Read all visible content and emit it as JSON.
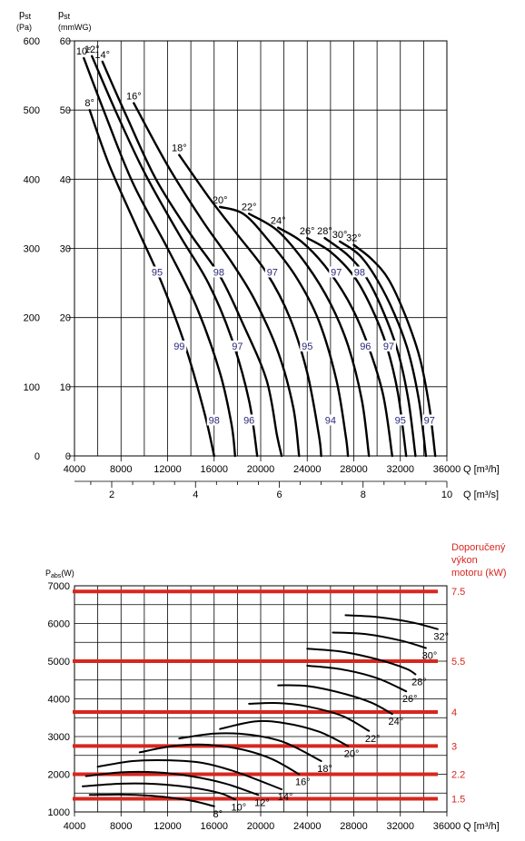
{
  "chart_data": [
    {
      "type": "line",
      "title": "",
      "xlabel": "Q [m³/h]",
      "x2label": "Q [m³/s]",
      "ylabel": "pst (Pa)",
      "y2label": "pst (mmWG)",
      "xlim": [
        4000,
        36000
      ],
      "ylim": [
        0,
        600
      ],
      "x_ticks": [
        4000,
        8000,
        12000,
        16000,
        20000,
        24000,
        28000,
        32000,
        36000
      ],
      "x2_ticks": [
        2,
        4,
        6,
        8,
        10
      ],
      "y_ticks": [
        0,
        100,
        200,
        300,
        400,
        500,
        600
      ],
      "y2_ticks": [
        0,
        10,
        20,
        30,
        40,
        50,
        60
      ],
      "grid": true,
      "series": [
        {
          "name": "8°",
          "points": [
            [
              5300,
              500
            ],
            [
              7000,
              420
            ],
            [
              9500,
              325
            ],
            [
              11500,
              250
            ],
            [
              13500,
              160
            ],
            [
              15200,
              60
            ],
            [
              16000,
              0
            ]
          ]
        },
        {
          "name": "10°",
          "points": [
            [
              4800,
              575
            ],
            [
              6500,
              500
            ],
            [
              9000,
              395
            ],
            [
              12000,
              300
            ],
            [
              14500,
              215
            ],
            [
              16500,
              120
            ],
            [
              17500,
              45
            ],
            [
              17800,
              0
            ]
          ]
        },
        {
          "name": "12°",
          "points": [
            [
              5500,
              578
            ],
            [
              7500,
              500
            ],
            [
              10000,
              410
            ],
            [
              13000,
              320
            ],
            [
              15500,
              250
            ],
            [
              17500,
              170
            ],
            [
              19000,
              80
            ],
            [
              19700,
              0
            ]
          ]
        },
        {
          "name": "14°",
          "points": [
            [
              6400,
              570
            ],
            [
              8500,
              490
            ],
            [
              11000,
              400
            ],
            [
              14000,
              320
            ],
            [
              16500,
              260
            ],
            [
              18500,
              190
            ],
            [
              20500,
              110
            ],
            [
              21400,
              30
            ],
            [
              21800,
              0
            ]
          ]
        },
        {
          "name": "16°",
          "points": [
            [
              9100,
              510
            ],
            [
              12000,
              420
            ],
            [
              15000,
              340
            ],
            [
              17500,
              280
            ],
            [
              19500,
              225
            ],
            [
              21500,
              150
            ],
            [
              22800,
              70
            ],
            [
              23300,
              0
            ]
          ]
        },
        {
          "name": "18°",
          "points": [
            [
              13000,
              435
            ],
            [
              15500,
              375
            ],
            [
              18000,
              320
            ],
            [
              20500,
              265
            ],
            [
              22500,
              200
            ],
            [
              24000,
              120
            ],
            [
              25000,
              30
            ],
            [
              25200,
              0
            ]
          ]
        },
        {
          "name": "20°",
          "points": [
            [
              16500,
              360
            ],
            [
              18500,
              350
            ],
            [
              20500,
              315
            ],
            [
              23000,
              260
            ],
            [
              25000,
              195
            ],
            [
              26500,
              110
            ],
            [
              27300,
              30
            ],
            [
              27500,
              0
            ]
          ]
        },
        {
          "name": "22°",
          "points": [
            [
              19000,
              350
            ],
            [
              21500,
              325
            ],
            [
              24000,
              275
            ],
            [
              26000,
              220
            ],
            [
              27500,
              160
            ],
            [
              28700,
              80
            ],
            [
              29300,
              0
            ]
          ]
        },
        {
          "name": "24°",
          "points": [
            [
              21500,
              330
            ],
            [
              23500,
              310
            ],
            [
              25500,
              275
            ],
            [
              27500,
              225
            ],
            [
              29000,
              170
            ],
            [
              30500,
              90
            ],
            [
              31300,
              0
            ]
          ]
        },
        {
          "name": "26°",
          "points": [
            [
              24000,
              315
            ],
            [
              26000,
              295
            ],
            [
              28000,
              260
            ],
            [
              29500,
              215
            ],
            [
              30800,
              160
            ],
            [
              31800,
              90
            ],
            [
              32500,
              0
            ]
          ]
        },
        {
          "name": "28°",
          "points": [
            [
              25500,
              315
            ],
            [
              27500,
              290
            ],
            [
              29000,
              260
            ],
            [
              30500,
              210
            ],
            [
              31800,
              150
            ],
            [
              32700,
              80
            ],
            [
              33300,
              0
            ]
          ]
        },
        {
          "name": "30°",
          "points": [
            [
              26800,
              310
            ],
            [
              28500,
              290
            ],
            [
              30000,
              255
            ],
            [
              31500,
              205
            ],
            [
              32700,
              150
            ],
            [
              33600,
              80
            ],
            [
              34200,
              0
            ]
          ]
        },
        {
          "name": "32°",
          "points": [
            [
              28000,
              305
            ],
            [
              29500,
              285
            ],
            [
              31000,
              255
            ],
            [
              32500,
              200
            ],
            [
              33700,
              140
            ],
            [
              34500,
              70
            ],
            [
              35000,
              0
            ]
          ]
        }
      ],
      "efficiency_labels": [
        "95",
        "99",
        "98",
        "98",
        "97",
        "96",
        "97",
        "95",
        "94",
        "97",
        "96",
        "95",
        "98",
        "97",
        "97"
      ]
    },
    {
      "type": "line",
      "title": "",
      "xlabel": "Q [m³/h]",
      "ylabel": "Pabs (W)",
      "right_label": "Doporučený výkon motoru (kW)",
      "xlim": [
        4000,
        36000
      ],
      "ylim": [
        1000,
        7000
      ],
      "x_ticks": [
        4000,
        8000,
        12000,
        16000,
        20000,
        24000,
        28000,
        32000,
        36000
      ],
      "y_ticks": [
        1000,
        2000,
        3000,
        4000,
        5000,
        6000,
        7000
      ],
      "grid": true,
      "motor_levels": [
        {
          "label": "7.5",
          "power": 6850
        },
        {
          "label": "5.5",
          "power": 5000
        },
        {
          "label": "4",
          "power": 3650
        },
        {
          "label": "3",
          "power": 2750
        },
        {
          "label": "2.2",
          "power": 2000
        },
        {
          "label": "1.5",
          "power": 1350
        }
      ],
      "series": [
        {
          "name": "8°",
          "points": [
            [
              5300,
              1450
            ],
            [
              8000,
              1460
            ],
            [
              11000,
              1420
            ],
            [
              14000,
              1300
            ],
            [
              16000,
              1150
            ]
          ]
        },
        {
          "name": "10°",
          "points": [
            [
              4700,
              1680
            ],
            [
              8000,
              1750
            ],
            [
              11000,
              1740
            ],
            [
              14000,
              1650
            ],
            [
              16500,
              1500
            ],
            [
              17800,
              1330
            ]
          ]
        },
        {
          "name": "12°",
          "points": [
            [
              5000,
              1950
            ],
            [
              8000,
              2050
            ],
            [
              11000,
              2050
            ],
            [
              14000,
              1950
            ],
            [
              17000,
              1750
            ],
            [
              19800,
              1450
            ]
          ]
        },
        {
          "name": "14°",
          "points": [
            [
              6000,
              2200
            ],
            [
              9000,
              2350
            ],
            [
              12000,
              2370
            ],
            [
              15000,
              2300
            ],
            [
              18000,
              2050
            ],
            [
              21800,
              1600
            ]
          ]
        },
        {
          "name": "16°",
          "points": [
            [
              9600,
              2580
            ],
            [
              12500,
              2750
            ],
            [
              15500,
              2780
            ],
            [
              18500,
              2650
            ],
            [
              21000,
              2400
            ],
            [
              23300,
              2000
            ]
          ]
        },
        {
          "name": "18°",
          "points": [
            [
              13000,
              2950
            ],
            [
              16000,
              3080
            ],
            [
              19000,
              3050
            ],
            [
              22000,
              2850
            ],
            [
              25200,
              2350
            ]
          ]
        },
        {
          "name": "20°",
          "points": [
            [
              16500,
              3200
            ],
            [
              19500,
              3400
            ],
            [
              22000,
              3360
            ],
            [
              25000,
              3130
            ],
            [
              27500,
              2750
            ]
          ]
        },
        {
          "name": "22°",
          "points": [
            [
              19000,
              3870
            ],
            [
              21500,
              3890
            ],
            [
              24000,
              3800
            ],
            [
              27000,
              3550
            ],
            [
              29300,
              3150
            ]
          ]
        },
        {
          "name": "24°",
          "points": [
            [
              21500,
              4360
            ],
            [
              24000,
              4340
            ],
            [
              27000,
              4150
            ],
            [
              29500,
              3900
            ],
            [
              31300,
              3600
            ]
          ]
        },
        {
          "name": "26°",
          "points": [
            [
              24000,
              4880
            ],
            [
              27000,
              4780
            ],
            [
              30000,
              4550
            ],
            [
              32500,
              4200
            ]
          ]
        },
        {
          "name": "28°",
          "points": [
            [
              24000,
              5330
            ],
            [
              27000,
              5250
            ],
            [
              30000,
              5050
            ],
            [
              32500,
              4800
            ],
            [
              33300,
              4650
            ]
          ]
        },
        {
          "name": "30°",
          "points": [
            [
              26200,
              5760
            ],
            [
              29000,
              5720
            ],
            [
              32000,
              5550
            ],
            [
              34200,
              5350
            ]
          ]
        },
        {
          "name": "32°",
          "points": [
            [
              27300,
              6220
            ],
            [
              30000,
              6170
            ],
            [
              33000,
              6030
            ],
            [
              35200,
              5850
            ]
          ]
        }
      ]
    }
  ],
  "labels": {
    "pst_main": "p",
    "pst_sub": "st",
    "pa_unit": "(Pa)",
    "mmwg_main": "p",
    "mmwg_sub": "st",
    "mmwg_unit": "(mmWG)",
    "q_m3h": "Q [m³/h]",
    "q_m3s": "Q [m³/s]",
    "pabs_main": "P",
    "pabs_sub": "abs",
    "pabs_unit": "(W)",
    "q_m3h_bottom": "Q [m³/h]",
    "motor_line1": "Doporučený",
    "motor_line2": "výkon",
    "motor_line3": "motoru (kW)"
  },
  "colors": {
    "red": "#d8261e",
    "efficiency": "#2a2a7a"
  }
}
